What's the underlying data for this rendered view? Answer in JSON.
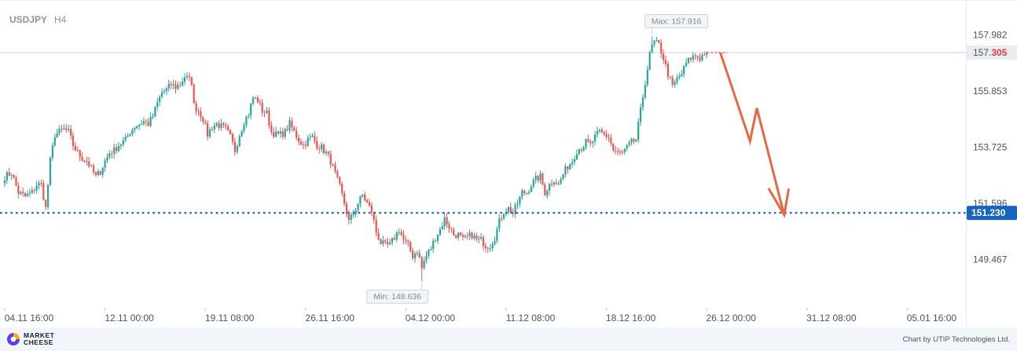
{
  "header": {
    "symbol": "USDJPY",
    "timeframe": "H4"
  },
  "annotations": {
    "max_label": "Max: 157.916",
    "min_label": "Min: 148.636"
  },
  "current_price": {
    "prefix": "157.",
    "suffix": "305"
  },
  "level_label": "151.230",
  "footer": {
    "logo_line1": "MARKET",
    "logo_line2": "CHEESE",
    "credit": "Chart by UTIP Technologies Ltd."
  },
  "colors": {
    "up": "#26a69a",
    "down": "#ef5350",
    "level": "#1565c0",
    "arrow": "#e8683f",
    "panel": "#f2f5fa"
  },
  "chart_data": {
    "type": "candlestick",
    "symbol": "USDJPY",
    "timeframe": "H4",
    "ylim": [
      147.6,
      159.3
    ],
    "y_ticks": [
      "157.982",
      "155.853",
      "153.725",
      "151.596",
      "149.467"
    ],
    "y_tick_values": [
      157.982,
      155.853,
      153.725,
      151.596,
      149.467
    ],
    "x_ticks": [
      "04.11 16:00",
      "12.11 00:00",
      "19.11 08:00",
      "26.11 16:00",
      "04.12 00:00",
      "11.12 08:00",
      "18.12 16:00",
      "26.12 00:00",
      "31.12 08:00",
      "05.01 16:00"
    ],
    "x_tick_index": [
      0,
      44,
      88,
      132,
      176,
      220,
      264,
      308,
      352,
      396
    ],
    "last_price": 157.305,
    "max": 157.916,
    "min": 148.636,
    "horizontal_level": 151.23,
    "forecast_path": [
      {
        "i": 314,
        "price": 157.3
      },
      {
        "i": 327,
        "price": 153.95
      },
      {
        "i": 330,
        "price": 155.2
      },
      {
        "i": 342,
        "price": 151.15
      },
      {
        "i": 344,
        "price": 152.15
      }
    ],
    "anchors": [
      [
        0,
        152.6
      ],
      [
        3,
        152.75
      ],
      [
        6,
        152.0
      ],
      [
        9,
        151.85
      ],
      [
        12,
        152.0
      ],
      [
        14,
        152.3
      ],
      [
        16,
        152.3
      ],
      [
        18,
        151.4
      ],
      [
        20,
        153.2
      ],
      [
        22,
        154.2
      ],
      [
        24,
        154.3
      ],
      [
        26,
        154.4
      ],
      [
        28,
        154.3
      ],
      [
        30,
        153.8
      ],
      [
        32,
        153.5
      ],
      [
        34,
        153.3
      ],
      [
        36,
        153.2
      ],
      [
        38,
        152.9
      ],
      [
        40,
        152.6
      ],
      [
        42,
        152.8
      ],
      [
        44,
        153.2
      ],
      [
        46,
        153.5
      ],
      [
        48,
        153.6
      ],
      [
        50,
        153.8
      ],
      [
        53,
        154.0
      ],
      [
        55,
        154.3
      ],
      [
        57,
        154.5
      ],
      [
        59,
        154.6
      ],
      [
        61,
        154.7
      ],
      [
        63,
        154.6
      ],
      [
        65,
        154.9
      ],
      [
        67,
        155.4
      ],
      [
        69,
        155.8
      ],
      [
        71,
        155.9
      ],
      [
        73,
        156.1
      ],
      [
        75,
        156.0
      ],
      [
        77,
        156.1
      ],
      [
        79,
        156.4
      ],
      [
        82,
        156.2
      ],
      [
        83,
        155.3
      ],
      [
        85,
        155.1
      ],
      [
        87,
        154.8
      ],
      [
        89,
        154.2
      ],
      [
        91,
        154.5
      ],
      [
        93,
        154.6
      ],
      [
        95,
        154.5
      ],
      [
        97,
        154.4
      ],
      [
        99,
        154.1
      ],
      [
        101,
        153.6
      ],
      [
        103,
        154.2
      ],
      [
        105,
        154.7
      ],
      [
        107,
        155.0
      ],
      [
        109,
        155.6
      ],
      [
        111,
        155.5
      ],
      [
        113,
        155.1
      ],
      [
        115,
        155.0
      ],
      [
        117,
        154.3
      ],
      [
        119,
        154.2
      ],
      [
        121,
        154.2
      ],
      [
        123,
        154.3
      ],
      [
        125,
        154.6
      ],
      [
        127,
        154.3
      ],
      [
        129,
        154.0
      ],
      [
        131,
        153.8
      ],
      [
        133,
        154.0
      ],
      [
        135,
        154.1
      ],
      [
        137,
        153.8
      ],
      [
        139,
        153.7
      ],
      [
        141,
        153.5
      ],
      [
        143,
        153.2
      ],
      [
        145,
        152.7
      ],
      [
        147,
        152.2
      ],
      [
        149,
        151.6
      ],
      [
        151,
        150.9
      ],
      [
        153,
        151.2
      ],
      [
        155,
        151.6
      ],
      [
        157,
        151.9
      ],
      [
        159,
        151.6
      ],
      [
        161,
        151.3
      ],
      [
        163,
        150.5
      ],
      [
        165,
        150.1
      ],
      [
        167,
        150.0
      ],
      [
        169,
        150.0
      ],
      [
        171,
        150.3
      ],
      [
        173,
        150.6
      ],
      [
        175,
        150.2
      ],
      [
        177,
        150.0
      ],
      [
        179,
        149.6
      ],
      [
        181,
        149.8
      ],
      [
        183,
        149.2
      ],
      [
        185,
        149.6
      ],
      [
        187,
        149.9
      ],
      [
        189,
        150.3
      ],
      [
        191,
        150.6
      ],
      [
        193,
        151.0
      ],
      [
        195,
        150.7
      ],
      [
        197,
        150.4
      ],
      [
        199,
        150.4
      ],
      [
        201,
        150.2
      ],
      [
        203,
        150.3
      ],
      [
        205,
        150.4
      ],
      [
        207,
        150.2
      ],
      [
        209,
        150.2
      ],
      [
        211,
        150.0
      ],
      [
        213,
        150.0
      ],
      [
        215,
        150.3
      ],
      [
        217,
        150.9
      ],
      [
        219,
        151.3
      ],
      [
        221,
        151.4
      ],
      [
        223,
        151.2
      ],
      [
        225,
        151.6
      ],
      [
        227,
        152.0
      ],
      [
        229,
        152.0
      ],
      [
        231,
        152.3
      ],
      [
        233,
        152.5
      ],
      [
        235,
        152.6
      ],
      [
        237,
        152.0
      ],
      [
        239,
        152.3
      ],
      [
        241,
        152.5
      ],
      [
        243,
        152.3
      ],
      [
        245,
        152.7
      ],
      [
        247,
        153.0
      ],
      [
        249,
        153.2
      ],
      [
        251,
        153.6
      ],
      [
        253,
        153.7
      ],
      [
        255,
        153.9
      ],
      [
        257,
        153.8
      ],
      [
        259,
        154.1
      ],
      [
        261,
        154.3
      ],
      [
        263,
        154.2
      ],
      [
        265,
        154.1
      ],
      [
        267,
        153.6
      ],
      [
        269,
        153.5
      ],
      [
        271,
        153.5
      ],
      [
        273,
        153.7
      ],
      [
        275,
        153.9
      ],
      [
        277,
        154.0
      ],
      [
        279,
        155.1
      ],
      [
        281,
        156.2
      ],
      [
        283,
        157.2
      ],
      [
        285,
        157.7
      ],
      [
        287,
        157.6
      ],
      [
        289,
        157.1
      ],
      [
        291,
        156.5
      ],
      [
        293,
        156.0
      ],
      [
        295,
        156.3
      ],
      [
        297,
        156.5
      ],
      [
        299,
        156.9
      ],
      [
        301,
        157.1
      ],
      [
        303,
        157.2
      ],
      [
        305,
        157.1
      ],
      [
        307,
        157.3
      ],
      [
        308,
        157.3
      ]
    ]
  }
}
